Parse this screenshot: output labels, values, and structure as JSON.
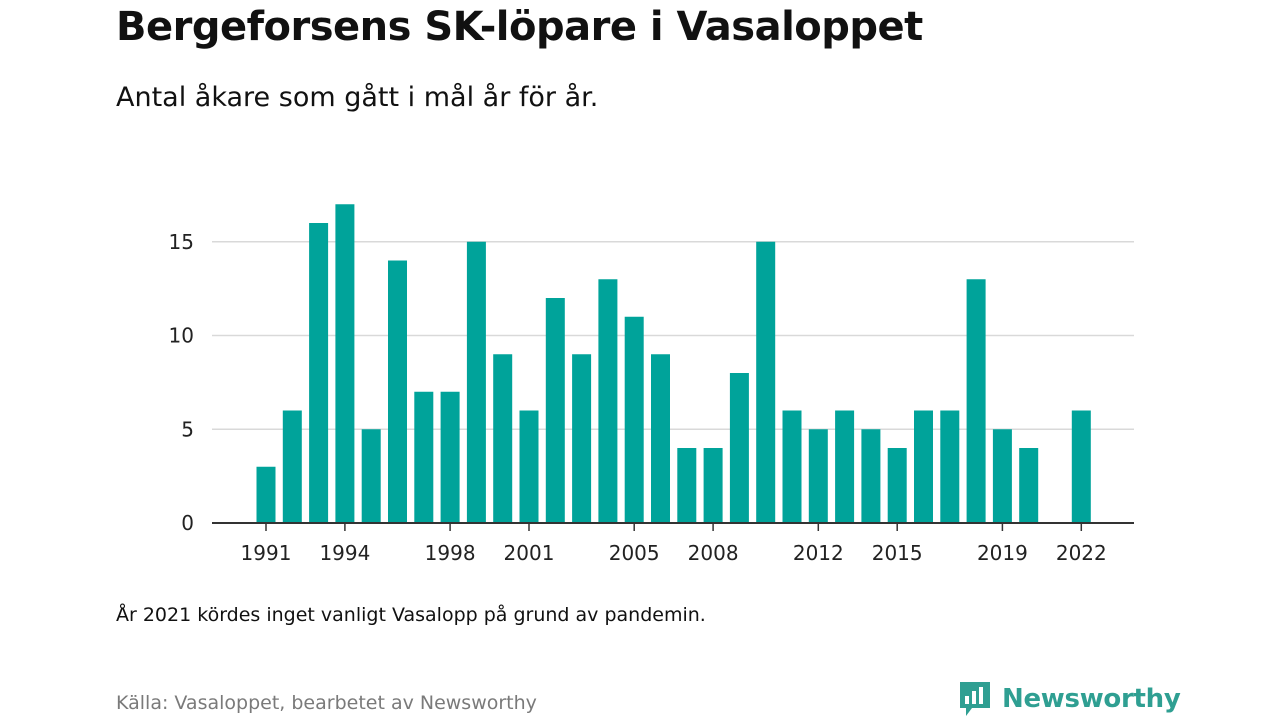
{
  "header": {
    "title": "Bergeforsens SK-löpare i Vasaloppet",
    "subtitle": "Antal åkare som gått i mål år för år."
  },
  "footer": {
    "note": "År 2021 kördes inget vanligt Vasalopp på grund av pandemin.",
    "source": "Källa: Vasaloppet, bearbetet av Newsworthy",
    "brand": "Newsworthy",
    "brand_icon": "newsworthy-logo-icon"
  },
  "colors": {
    "bar": "#00a39a",
    "grid": "#d9d9d9",
    "axis": "#333333",
    "brand": "#2f9f92"
  },
  "chart_data": {
    "type": "bar",
    "title": "Bergeforsens SK-löpare i Vasaloppet",
    "subtitle": "Antal åkare som gått i mål år för år.",
    "xlabel": "",
    "ylabel": "",
    "categories": [
      1991,
      1992,
      1993,
      1994,
      1995,
      1996,
      1997,
      1998,
      1999,
      2000,
      2001,
      2002,
      2003,
      2004,
      2005,
      2006,
      2007,
      2008,
      2009,
      2010,
      2011,
      2012,
      2013,
      2014,
      2015,
      2016,
      2017,
      2018,
      2019,
      2020,
      2021,
      2022
    ],
    "values": [
      3,
      6,
      16,
      17,
      5,
      14,
      7,
      7,
      15,
      9,
      6,
      12,
      9,
      13,
      11,
      9,
      4,
      4,
      8,
      15,
      6,
      5,
      6,
      5,
      4,
      6,
      6,
      13,
      5,
      4,
      0,
      6
    ],
    "x_tick_labels": [
      "1991",
      "1994",
      "1998",
      "2001",
      "2005",
      "2008",
      "2012",
      "2015",
      "2019",
      "2022"
    ],
    "y_ticks": [
      0,
      5,
      10,
      15
    ],
    "ylim": [
      0,
      17
    ],
    "grid": true,
    "legend": "none"
  }
}
